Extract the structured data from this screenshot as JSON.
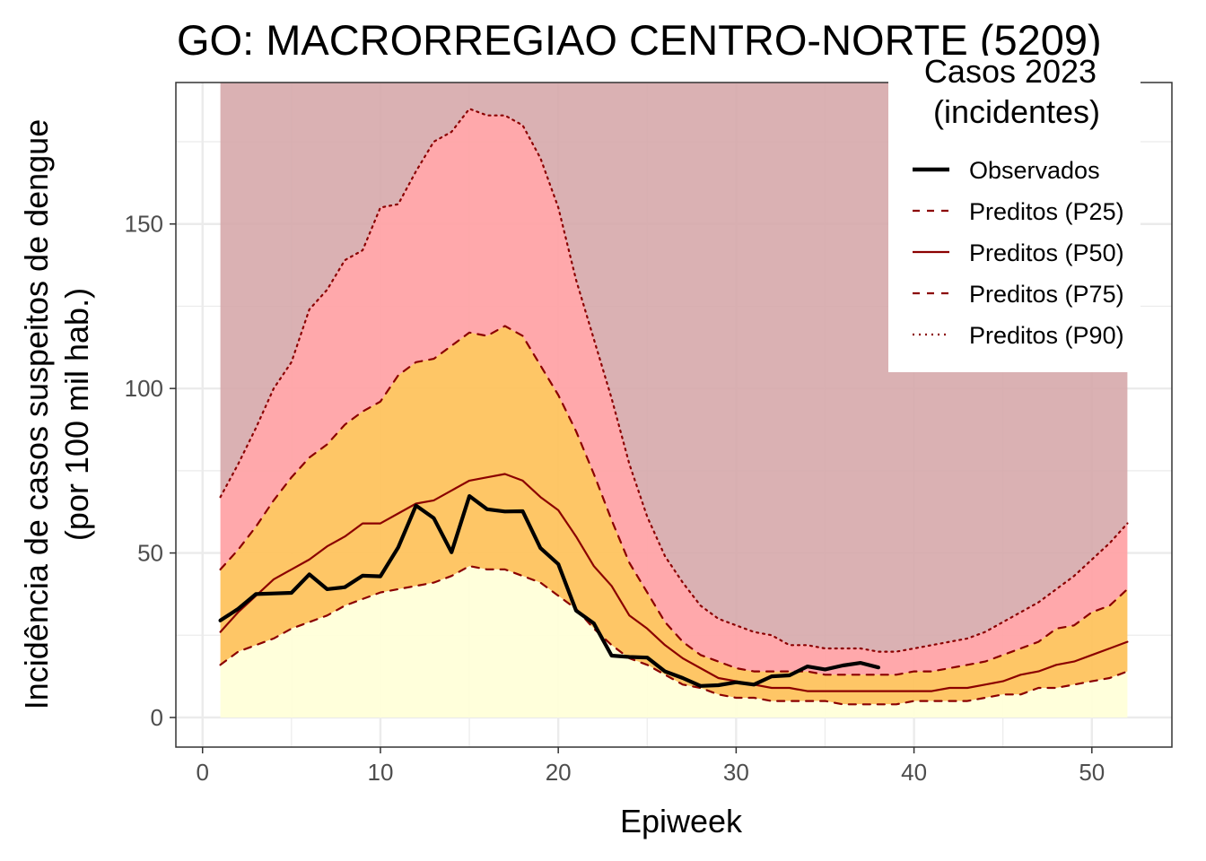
{
  "chart_data": {
    "type": "area",
    "title": "GO: MACRORREGIAO CENTRO-NORTE (5209)",
    "xlabel": "Epiweek",
    "ylabel_lines": [
      "Incidência de casos suspeitos de dengue",
      "(por 100 mil hab.)"
    ],
    "xlim": [
      -1.5,
      54.5
    ],
    "ylim": [
      -9,
      193
    ],
    "xticks": [
      0,
      10,
      20,
      30,
      40,
      50
    ],
    "yticks": [
      0,
      50,
      100,
      150
    ],
    "grid": true,
    "legend": {
      "title_lines": [
        "Casos 2023",
        "(incidentes)"
      ],
      "placement": "top-right",
      "entries": [
        {
          "label": "Observados",
          "style": "solid-thick",
          "color": "#000000"
        },
        {
          "label": "Preditos (P25)",
          "style": "dashed",
          "color": "#8b0000"
        },
        {
          "label": "Preditos (P50)",
          "style": "solid",
          "color": "#8b0000"
        },
        {
          "label": "Preditos (P75)",
          "style": "dashed",
          "color": "#8b0000"
        },
        {
          "label": "Preditos (P90)",
          "style": "dotted",
          "color": "#8b0000"
        }
      ]
    },
    "colors": {
      "band_low": "#ffffd9",
      "band_p25_p75": "#fec35e",
      "band_p75_p90": "#ffa3a6",
      "band_above": "#d5a6a8",
      "pred_line": "#8b0000",
      "observed": "#000000"
    },
    "x": [
      1,
      2,
      3,
      4,
      5,
      6,
      7,
      8,
      9,
      10,
      11,
      12,
      13,
      14,
      15,
      16,
      17,
      18,
      19,
      20,
      21,
      22,
      23,
      24,
      25,
      26,
      27,
      28,
      29,
      30,
      31,
      32,
      33,
      34,
      35,
      36,
      37,
      38,
      39,
      40,
      41,
      42,
      43,
      44,
      45,
      46,
      47,
      48,
      49,
      50,
      51,
      52
    ],
    "band_top": 193,
    "series": [
      {
        "name": "Preditos (P25)",
        "key": "p25",
        "values": [
          16,
          20,
          22,
          24,
          27,
          29,
          31,
          34,
          36,
          38,
          39,
          40,
          41,
          43,
          46,
          45,
          45,
          43,
          41,
          37,
          33,
          27,
          22,
          18,
          16,
          13,
          10,
          9,
          7,
          6,
          6,
          5,
          5,
          5,
          5,
          4,
          4,
          4,
          4,
          5,
          5,
          5,
          5,
          6,
          7,
          7,
          9,
          9,
          10,
          11,
          12,
          14
        ]
      },
      {
        "name": "Preditos (P50)",
        "key": "p50",
        "values": [
          26,
          32,
          37,
          42,
          45,
          48,
          52,
          55,
          59,
          59,
          62,
          65,
          66,
          69,
          72,
          73,
          74,
          72,
          67,
          63,
          55,
          46,
          40,
          31,
          27,
          22,
          18,
          15,
          12,
          11,
          10,
          9,
          9,
          8,
          8,
          8,
          8,
          8,
          8,
          8,
          8,
          9,
          9,
          10,
          11,
          13,
          14,
          16,
          17,
          19,
          21,
          23
        ]
      },
      {
        "name": "Preditos (P75)",
        "key": "p75",
        "values": [
          45,
          51,
          58,
          66,
          73,
          79,
          83,
          89,
          93,
          96,
          104,
          108,
          109,
          113,
          117,
          116,
          119,
          116,
          107,
          98,
          87,
          74,
          60,
          47,
          38,
          29,
          23,
          19,
          17,
          15,
          14,
          14,
          14,
          14,
          13,
          13,
          13,
          13,
          13,
          14,
          14,
          15,
          16,
          17,
          19,
          21,
          23,
          27,
          28,
          32,
          34,
          39
        ]
      },
      {
        "name": "Preditos (P90)",
        "key": "p90",
        "values": [
          67,
          77,
          88,
          100,
          108,
          124,
          130,
          139,
          142,
          155,
          156,
          166,
          175,
          178,
          185,
          183,
          183,
          180,
          170,
          155,
          133,
          115,
          97,
          77,
          61,
          49,
          41,
          34,
          30,
          28,
          26,
          25,
          22,
          22,
          21,
          21,
          21,
          20,
          20,
          21,
          22,
          23,
          24,
          26,
          29,
          32,
          35,
          39,
          43,
          48,
          53,
          59
        ]
      },
      {
        "name": "Observados",
        "key": "obs",
        "x": [
          1,
          2,
          3,
          4,
          5,
          6,
          7,
          8,
          9,
          10,
          11,
          12,
          13,
          14,
          15,
          16,
          17,
          18,
          19,
          20,
          21,
          22,
          23,
          24,
          25,
          26,
          27,
          28,
          29,
          30,
          31,
          32,
          33,
          34,
          35,
          36,
          37,
          38
        ],
        "values": [
          29.5,
          33,
          37.5,
          37.7,
          37.9,
          43.5,
          39,
          39.6,
          43.1,
          42.9,
          51.7,
          64.4,
          60.6,
          50.2,
          67.3,
          63.3,
          62.6,
          62.7,
          51.5,
          46.6,
          32.5,
          28.6,
          18.8,
          18.4,
          18.2,
          14,
          12,
          9.6,
          9.8,
          10.7,
          10,
          12.5,
          12.8,
          15.5,
          14.6,
          15.8,
          16.6,
          15.2
        ]
      }
    ]
  }
}
